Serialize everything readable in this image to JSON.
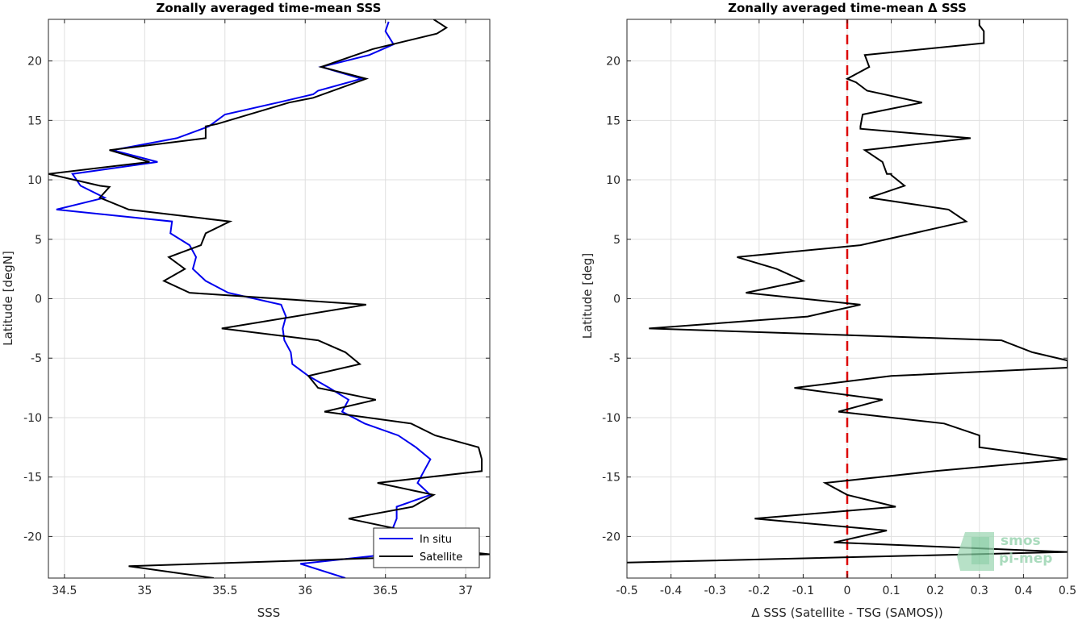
{
  "chart_data": [
    {
      "type": "line",
      "title": "Zonally averaged time-mean SSS",
      "xlabel": "SSS",
      "ylabel": "Latitude [degN]",
      "xlim": [
        34.4,
        37.15
      ],
      "ylim": [
        -23.5,
        23.5
      ],
      "xticks": [
        34.5,
        35,
        35.5,
        36,
        36.5,
        37
      ],
      "yticks": [
        -20,
        -15,
        -10,
        -5,
        0,
        5,
        10,
        15,
        20
      ],
      "grid": true,
      "legend": "bottom-right",
      "series": [
        {
          "name": "In situ",
          "color": "#0000ee",
          "points": [
            [
              36.52,
              23.3
            ],
            [
              36.5,
              22.5
            ],
            [
              36.55,
              21.4
            ],
            [
              36.4,
              20.5
            ],
            [
              36.1,
              19.5
            ],
            [
              36.35,
              18.5
            ],
            [
              36.08,
              17.5
            ],
            [
              36.05,
              17.2
            ],
            [
              35.83,
              16.5
            ],
            [
              35.5,
              15.5
            ],
            [
              35.4,
              14.5
            ],
            [
              35.2,
              13.5
            ],
            [
              34.8,
              12.5
            ],
            [
              35.08,
              11.5
            ],
            [
              34.55,
              10.5
            ],
            [
              34.6,
              9.5
            ],
            [
              34.75,
              8.5
            ],
            [
              34.45,
              7.5
            ],
            [
              35.17,
              6.5
            ],
            [
              35.16,
              5.5
            ],
            [
              35.28,
              4.5
            ],
            [
              35.32,
              3.5
            ],
            [
              35.3,
              2.5
            ],
            [
              35.38,
              1.5
            ],
            [
              35.52,
              0.5
            ],
            [
              35.85,
              -0.5
            ],
            [
              35.88,
              -1.5
            ],
            [
              35.86,
              -2.5
            ],
            [
              35.87,
              -3.5
            ],
            [
              35.91,
              -4.5
            ],
            [
              35.92,
              -5.5
            ],
            [
              36.02,
              -6.5
            ],
            [
              36.15,
              -7.5
            ],
            [
              36.27,
              -8.5
            ],
            [
              36.23,
              -9.5
            ],
            [
              36.37,
              -10.5
            ],
            [
              36.58,
              -11.5
            ],
            [
              36.69,
              -12.5
            ],
            [
              36.78,
              -13.5
            ],
            [
              36.74,
              -14.5
            ],
            [
              36.7,
              -15.5
            ],
            [
              36.78,
              -16.5
            ],
            [
              36.57,
              -17.5
            ],
            [
              36.57,
              -18.5
            ],
            [
              36.54,
              -19.5
            ],
            [
              36.56,
              -20.5
            ],
            [
              36.52,
              -21.5
            ],
            [
              35.97,
              -22.3
            ],
            [
              36.25,
              -23.5
            ]
          ]
        },
        {
          "name": "Satellite",
          "color": "#000000",
          "points": [
            [
              36.8,
              23.5
            ],
            [
              36.88,
              22.8
            ],
            [
              36.82,
              22.3
            ],
            [
              36.42,
              21.0
            ],
            [
              36.1,
              19.5
            ],
            [
              36.38,
              18.5
            ],
            [
              36.05,
              16.9
            ],
            [
              35.9,
              16.5
            ],
            [
              35.45,
              14.7
            ],
            [
              35.38,
              14.5
            ],
            [
              35.38,
              13.5
            ],
            [
              34.78,
              12.5
            ],
            [
              35.03,
              11.5
            ],
            [
              34.4,
              10.5
            ],
            [
              34.72,
              9.5
            ],
            [
              34.78,
              9.4
            ],
            [
              34.72,
              8.5
            ],
            [
              34.9,
              7.5
            ],
            [
              35.53,
              6.5
            ],
            [
              35.38,
              5.5
            ],
            [
              35.35,
              4.5
            ],
            [
              35.15,
              3.5
            ],
            [
              35.25,
              2.5
            ],
            [
              35.12,
              1.5
            ],
            [
              35.28,
              0.5
            ],
            [
              36.38,
              -0.5
            ],
            [
              35.48,
              -2.5
            ],
            [
              36.08,
              -3.5
            ],
            [
              36.25,
              -4.5
            ],
            [
              36.34,
              -5.5
            ],
            [
              36.02,
              -6.5
            ],
            [
              36.08,
              -7.5
            ],
            [
              36.44,
              -8.5
            ],
            [
              36.12,
              -9.5
            ],
            [
              36.66,
              -10.5
            ],
            [
              36.81,
              -11.5
            ],
            [
              37.08,
              -12.5
            ],
            [
              37.1,
              -13.5
            ],
            [
              37.1,
              -14.5
            ],
            [
              36.45,
              -15.5
            ],
            [
              36.8,
              -16.5
            ],
            [
              36.67,
              -17.5
            ],
            [
              36.27,
              -18.5
            ],
            [
              36.62,
              -19.5
            ],
            [
              36.45,
              -20.5
            ],
            [
              37.15,
              -21.5
            ],
            [
              34.9,
              -22.5
            ],
            [
              35.43,
              -23.5
            ]
          ]
        }
      ]
    },
    {
      "type": "line",
      "title": "Zonally averaged time-mean Δ SSS",
      "xlabel": "Δ SSS (Satellite - TSG (SAMOS))",
      "ylabel": "Latitude [deg]",
      "xlim": [
        -0.5,
        0.5
      ],
      "ylim": [
        -23.5,
        23.5
      ],
      "xticks": [
        -0.5,
        -0.4,
        -0.3,
        -0.2,
        -0.1,
        0,
        0.1,
        0.2,
        0.3,
        0.4,
        0.5
      ],
      "yticks": [
        -20,
        -15,
        -10,
        -5,
        0,
        5,
        10,
        15,
        20
      ],
      "grid": true,
      "zero_line": {
        "x": 0,
        "color": "#dd0000",
        "style": "dashed"
      },
      "series": [
        {
          "name": "",
          "color": "#000000",
          "points": [
            [
              0.3,
              23.5
            ],
            [
              0.3,
              23.0
            ],
            [
              0.31,
              22.5
            ],
            [
              0.31,
              21.5
            ],
            [
              0.04,
              20.5
            ],
            [
              0.05,
              19.5
            ],
            [
              0.0,
              18.5
            ],
            [
              0.02,
              18.2
            ],
            [
              0.045,
              17.5
            ],
            [
              0.17,
              16.5
            ],
            [
              0.035,
              15.5
            ],
            [
              0.03,
              14.5
            ],
            [
              0.03,
              14.3
            ],
            [
              0.28,
              13.5
            ],
            [
              0.04,
              12.5
            ],
            [
              0.08,
              11.5
            ],
            [
              0.09,
              10.5
            ],
            [
              0.1,
              10.5
            ],
            [
              0.1,
              10.4
            ],
            [
              0.13,
              9.5
            ],
            [
              0.05,
              8.5
            ],
            [
              0.23,
              7.5
            ],
            [
              0.27,
              6.5
            ],
            [
              0.03,
              4.5
            ],
            [
              -0.25,
              3.5
            ],
            [
              -0.16,
              2.5
            ],
            [
              -0.1,
              1.5
            ],
            [
              -0.23,
              0.5
            ],
            [
              0.03,
              -0.5
            ],
            [
              -0.09,
              -1.5
            ],
            [
              -0.45,
              -2.5
            ],
            [
              0.35,
              -3.5
            ],
            [
              0.42,
              -4.5
            ],
            [
              0.5,
              -5.2
            ],
            [
              0.5,
              -5.8
            ],
            [
              0.1,
              -6.5
            ],
            [
              -0.12,
              -7.5
            ],
            [
              0.08,
              -8.5
            ],
            [
              -0.02,
              -9.5
            ],
            [
              0.22,
              -10.5
            ],
            [
              0.3,
              -11.5
            ],
            [
              0.3,
              -12.5
            ],
            [
              0.5,
              -13.5
            ],
            [
              0.2,
              -14.5
            ],
            [
              -0.05,
              -15.5
            ],
            [
              0.0,
              -16.5
            ],
            [
              0.11,
              -17.5
            ],
            [
              -0.21,
              -18.5
            ],
            [
              0.09,
              -19.5
            ],
            [
              -0.03,
              -20.5
            ],
            [
              0.5,
              -21.3
            ],
            [
              -0.5,
              -22.2
            ]
          ]
        }
      ]
    }
  ],
  "legend": {
    "items": [
      {
        "label": "In situ",
        "color": "#0000ee"
      },
      {
        "label": "Satellite",
        "color": "#000000"
      }
    ]
  },
  "watermark": {
    "line1": "smos",
    "line2": "pi-mep"
  }
}
